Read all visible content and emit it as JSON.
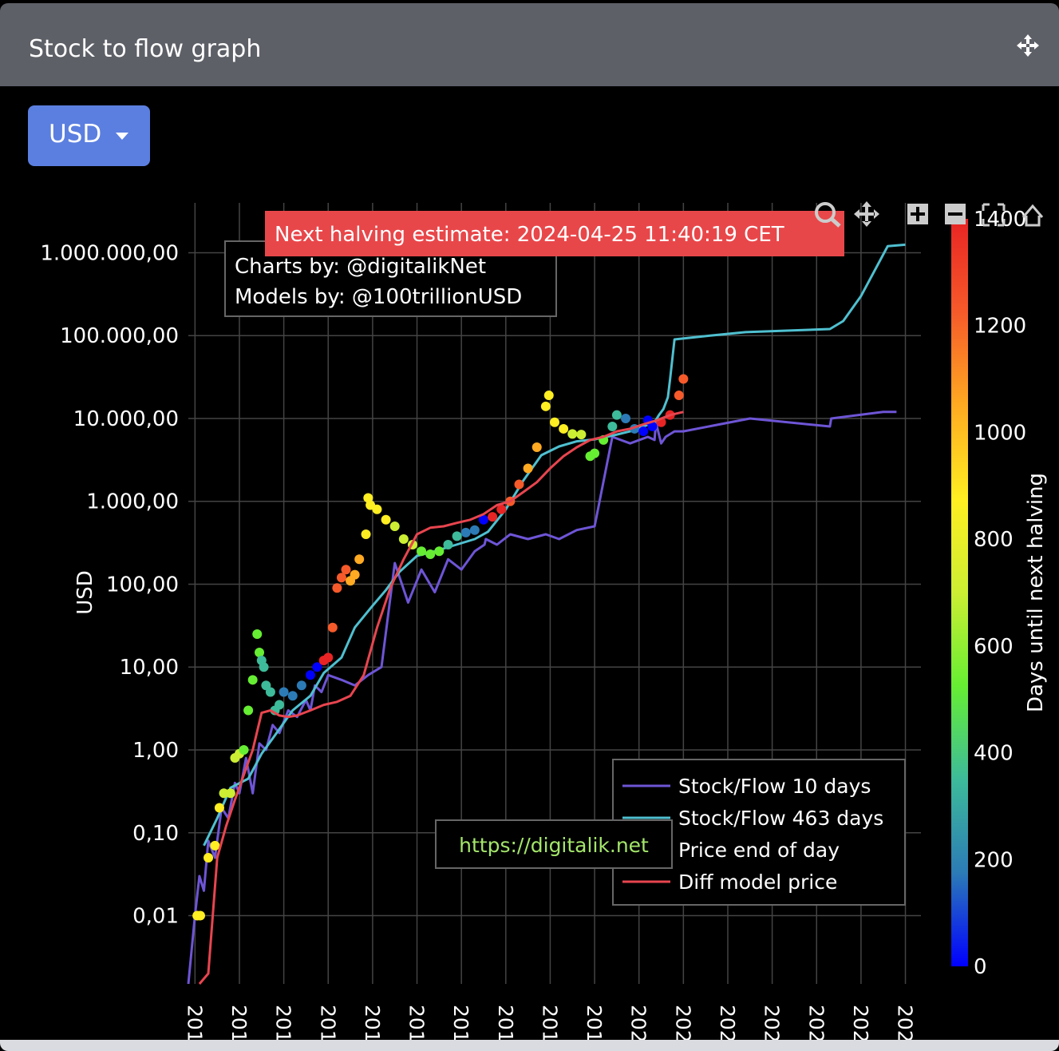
{
  "header": {
    "title": "Stock to flow graph",
    "move_icon": "move-arrows-icon"
  },
  "currency_dropdown": {
    "selected": "USD"
  },
  "toolbar": {
    "icons": [
      "zoom-icon",
      "pan-icon",
      "zoom-in-icon",
      "zoom-out-icon",
      "autoscale-icon",
      "reset-axes-icon"
    ]
  },
  "halving_banner": "Next halving estimate: 2024-04-25 11:40:19 CET",
  "credits": {
    "line1": "Charts by: @digitalikNet",
    "line2": "Models by: @100trillionUSD"
  },
  "watermark": "https://digitalik.net",
  "chart_data": {
    "type": "scatter",
    "ylabel": "USD",
    "yscale": "log",
    "ylim": [
      0.0015,
      4000000
    ],
    "y_ticks": [
      {
        "value": 0.01,
        "label": "0,01"
      },
      {
        "value": 0.1,
        "label": "0,10"
      },
      {
        "value": 1,
        "label": "1,00"
      },
      {
        "value": 10,
        "label": "10,00"
      },
      {
        "value": 100,
        "label": "100,00"
      },
      {
        "value": 1000,
        "label": "1.000,00"
      },
      {
        "value": 10000,
        "label": "10.000,00"
      },
      {
        "value": 100000,
        "label": "100.000,00"
      },
      {
        "value": 1000000,
        "label": "1.000.000,00"
      }
    ],
    "xlim": [
      2009.85,
      2026.35
    ],
    "x_ticks": [
      {
        "value": 2010,
        "label": "201"
      },
      {
        "value": 2011,
        "label": "201"
      },
      {
        "value": 2012,
        "label": "201"
      },
      {
        "value": 2013,
        "label": "201"
      },
      {
        "value": 2014,
        "label": "201"
      },
      {
        "value": 2015,
        "label": "201"
      },
      {
        "value": 2016,
        "label": "201"
      },
      {
        "value": 2017,
        "label": "201"
      },
      {
        "value": 2018,
        "label": "201"
      },
      {
        "value": 2019,
        "label": "201"
      },
      {
        "value": 2020,
        "label": "202"
      },
      {
        "value": 2021,
        "label": "202"
      },
      {
        "value": 2022,
        "label": "202"
      },
      {
        "value": 2023,
        "label": "202"
      },
      {
        "value": 2024,
        "label": "202"
      },
      {
        "value": 2025,
        "label": "202"
      },
      {
        "value": 2026,
        "label": "202"
      }
    ],
    "grid": true,
    "legend_position": "bottom-right",
    "colorbar": {
      "title": "Days until next halving",
      "range": [
        0,
        1400
      ],
      "ticks": [
        0,
        200,
        400,
        600,
        800,
        1000,
        1200,
        1400
      ],
      "colors": [
        "#0000ff",
        "#2c7bb6",
        "#3dbb9a",
        "#66ee33",
        "#ccee33",
        "#ffee22",
        "#ffaa22",
        "#f65a2a",
        "#e82424"
      ]
    },
    "series": [
      {
        "name": "Stock/Flow 10 days",
        "color": "#6e55d6",
        "mode": "line",
        "x": [
          2009.85,
          2010.0,
          2010.1,
          2010.2,
          2010.3,
          2010.45,
          2010.6,
          2010.75,
          2010.9,
          2011.0,
          2011.15,
          2011.3,
          2011.45,
          2011.6,
          2011.75,
          2011.9,
          2012.1,
          2012.3,
          2012.5,
          2012.6,
          2012.7,
          2012.85,
          2013.0,
          2013.3,
          2013.6,
          2013.9,
          2014.2,
          2014.5,
          2014.8,
          2015.1,
          2015.4,
          2015.7,
          2016.0,
          2016.3,
          2016.52,
          2016.55,
          2016.8,
          2017.1,
          2017.5,
          2017.9,
          2018.2,
          2018.6,
          2019.0,
          2019.4,
          2019.8,
          2020.2,
          2020.35,
          2020.38,
          2020.5,
          2020.6,
          2020.8,
          2021.0,
          2022.5,
          2024.3,
          2024.33,
          2025.5,
          2025.8
        ],
        "y": [
          0.001,
          0.01,
          0.03,
          0.02,
          0.08,
          0.05,
          0.2,
          0.15,
          0.4,
          0.3,
          0.8,
          0.3,
          1.2,
          1.0,
          2.0,
          1.6,
          3.0,
          2.5,
          4.0,
          3.0,
          6.0,
          5.0,
          8.0,
          7.0,
          6.0,
          8.0,
          10.0,
          180,
          60,
          150,
          80,
          200,
          150,
          250,
          300,
          350,
          300,
          400,
          350,
          400,
          350,
          450,
          500,
          6000,
          5000,
          6000,
          5500,
          9000,
          5000,
          6000,
          7000,
          7000,
          10000,
          8000,
          10000,
          12000,
          12000
        ]
      },
      {
        "name": "Stock/Flow 463 days",
        "color": "#4fc0d0",
        "mode": "line",
        "x": [
          2010.2,
          2010.5,
          2010.8,
          2011.2,
          2011.5,
          2011.8,
          2012.2,
          2012.6,
          2012.9,
          2013.3,
          2013.6,
          2014.0,
          2014.3,
          2014.6,
          2015.0,
          2015.4,
          2015.8,
          2016.3,
          2016.6,
          2017.0,
          2017.4,
          2017.8,
          2018.2,
          2018.6,
          2019.0,
          2019.4,
          2019.8,
          2020.1,
          2020.35,
          2020.45,
          2020.55,
          2020.65,
          2020.7,
          2020.8,
          2021.6,
          2022.4,
          2024.3,
          2024.6,
          2025.0,
          2025.6,
          2026.0
        ],
        "y": [
          0.07,
          0.15,
          0.35,
          0.45,
          0.9,
          1.5,
          3.0,
          4.5,
          8.5,
          13,
          30,
          55,
          85,
          140,
          220,
          250,
          290,
          350,
          430,
          800,
          1800,
          3600,
          4600,
          5300,
          5600,
          6200,
          7000,
          8000,
          9000,
          11000,
          13000,
          18000,
          30000,
          90000,
          100000,
          110000,
          120000,
          150000,
          300000,
          1200000,
          1250000
        ]
      },
      {
        "name": "Price end of day",
        "mode": "markers-colorscale",
        "x": [
          2010.05,
          2010.12,
          2010.3,
          2010.45,
          2010.55,
          2010.65,
          2010.8,
          2010.9,
          2011.0,
          2011.1,
          2011.2,
          2011.3,
          2011.4,
          2011.45,
          2011.5,
          2011.55,
          2011.6,
          2011.7,
          2011.8,
          2011.9,
          2012.0,
          2012.2,
          2012.4,
          2012.6,
          2012.75,
          2012.9,
          2013.0,
          2013.1,
          2013.2,
          2013.3,
          2013.4,
          2013.5,
          2013.6,
          2013.7,
          2013.85,
          2013.9,
          2013.95,
          2014.1,
          2014.3,
          2014.5,
          2014.7,
          2014.9,
          2015.1,
          2015.3,
          2015.5,
          2015.7,
          2015.9,
          2016.1,
          2016.3,
          2016.5,
          2016.7,
          2016.9,
          2017.1,
          2017.3,
          2017.5,
          2017.7,
          2017.9,
          2017.97,
          2018.1,
          2018.3,
          2018.5,
          2018.7,
          2018.9,
          2019.0,
          2019.2,
          2019.4,
          2019.5,
          2019.7,
          2019.9,
          2020.1,
          2020.2,
          2020.3,
          2020.5,
          2020.7,
          2020.9,
          2021.0
        ],
        "y": [
          0.01,
          0.01,
          0.05,
          0.07,
          0.2,
          0.3,
          0.3,
          0.8,
          0.9,
          1.0,
          3.0,
          7.0,
          25,
          15,
          12,
          10,
          6,
          5,
          3,
          3.5,
          5,
          4.5,
          6,
          8,
          10,
          12,
          13,
          30,
          90,
          120,
          150,
          110,
          130,
          200,
          400,
          1100,
          900,
          800,
          600,
          500,
          350,
          300,
          250,
          230,
          250,
          300,
          380,
          420,
          450,
          600,
          650,
          800,
          1000,
          1600,
          2500,
          4500,
          14000,
          19000,
          9000,
          7500,
          6500,
          6400,
          3500,
          3800,
          5500,
          8000,
          11000,
          10000,
          7500,
          7000,
          9500,
          8000,
          9000,
          11000,
          19000,
          30000
        ],
        "days_until_halving": [
          900,
          880,
          860,
          820,
          800,
          760,
          700,
          660,
          620,
          580,
          540,
          500,
          460,
          440,
          430,
          420,
          400,
          380,
          340,
          300,
          240,
          180,
          120,
          60,
          20,
          1400,
          1360,
          1300,
          1260,
          1200,
          1160,
          1120,
          1080,
          1040,
          960,
          920,
          900,
          860,
          800,
          740,
          680,
          620,
          560,
          500,
          440,
          380,
          300,
          220,
          140,
          60,
          1400,
          1340,
          1260,
          1180,
          1100,
          1020,
          940,
          920,
          880,
          800,
          720,
          640,
          560,
          520,
          440,
          360,
          320,
          240,
          160,
          80,
          40,
          10,
          1380,
          1320,
          1240,
          1200
        ]
      },
      {
        "name": "Diff model price",
        "color": "#e8454f",
        "mode": "line",
        "x": [
          2010.1,
          2010.3,
          2010.5,
          2010.7,
          2010.9,
          2011.1,
          2011.3,
          2011.5,
          2011.7,
          2011.9,
          2012.1,
          2012.3,
          2012.6,
          2012.9,
          2013.2,
          2013.5,
          2013.8,
          2014.1,
          2014.4,
          2014.7,
          2015.0,
          2015.3,
          2015.6,
          2015.9,
          2016.2,
          2016.5,
          2016.8,
          2017.1,
          2017.4,
          2017.7,
          2018.0,
          2018.3,
          2018.6,
          2018.9,
          2019.2,
          2019.5,
          2019.8,
          2020.1,
          2020.4,
          2020.7,
          2021.0
        ],
        "y": [
          0.001,
          0.002,
          0.05,
          0.12,
          0.25,
          0.5,
          1.0,
          2.8,
          3.0,
          2.6,
          2.5,
          2.6,
          3.0,
          3.5,
          3.8,
          4.5,
          8,
          30,
          90,
          200,
          400,
          480,
          500,
          550,
          600,
          700,
          900,
          1000,
          1300,
          1700,
          2500,
          3500,
          4500,
          5500,
          6000,
          7000,
          7500,
          8500,
          9500,
          11000,
          12000
        ]
      }
    ]
  }
}
